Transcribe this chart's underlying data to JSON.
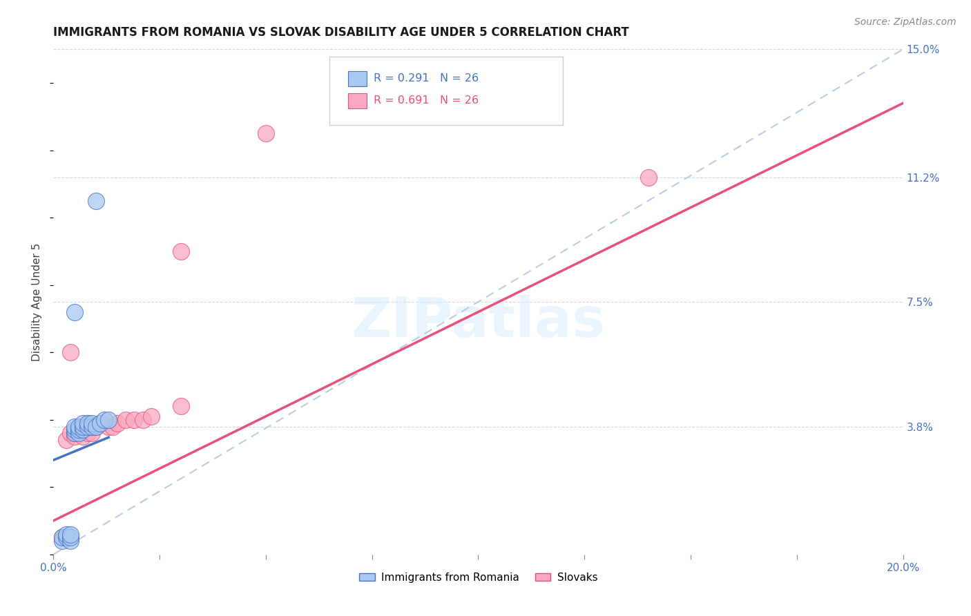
{
  "title": "IMMIGRANTS FROM ROMANIA VS SLOVAK DISABILITY AGE UNDER 5 CORRELATION CHART",
  "source": "Source: ZipAtlas.com",
  "ylabel": "Disability Age Under 5",
  "xlim": [
    0,
    0.2
  ],
  "ylim": [
    0,
    0.15
  ],
  "right_ytick_positions": [
    0.0,
    0.038,
    0.075,
    0.112,
    0.15
  ],
  "right_ytick_labels": [
    "",
    "3.8%",
    "7.5%",
    "11.2%",
    "15.0%"
  ],
  "legend_label1": "Immigrants from Romania",
  "legend_label2": "Slovaks",
  "color_romania": "#a8c8f0",
  "color_slovak": "#f8a8c0",
  "line_color_romania": "#4472c4",
  "line_color_slovak": "#e8507a",
  "diagonal_color": "#b8cce4",
  "watermark": "ZIPatlas",
  "romania_x": [
    0.002,
    0.002,
    0.003,
    0.003,
    0.004,
    0.004,
    0.004,
    0.005,
    0.005,
    0.005,
    0.006,
    0.006,
    0.006,
    0.007,
    0.007,
    0.007,
    0.008,
    0.008,
    0.009,
    0.009,
    0.01,
    0.011,
    0.012,
    0.013,
    0.005,
    0.01
  ],
  "romania_y": [
    0.004,
    0.005,
    0.005,
    0.006,
    0.004,
    0.005,
    0.006,
    0.036,
    0.037,
    0.038,
    0.036,
    0.037,
    0.038,
    0.037,
    0.038,
    0.039,
    0.038,
    0.039,
    0.038,
    0.039,
    0.038,
    0.039,
    0.04,
    0.04,
    0.072,
    0.105
  ],
  "slovak_x": [
    0.002,
    0.003,
    0.004,
    0.004,
    0.005,
    0.005,
    0.006,
    0.007,
    0.007,
    0.008,
    0.008,
    0.009,
    0.009,
    0.01,
    0.011,
    0.013,
    0.014,
    0.015,
    0.017,
    0.019,
    0.021,
    0.023,
    0.03,
    0.05,
    0.14,
    0.03
  ],
  "slovak_y": [
    0.005,
    0.034,
    0.036,
    0.06,
    0.035,
    0.036,
    0.037,
    0.035,
    0.038,
    0.036,
    0.039,
    0.036,
    0.038,
    0.038,
    0.039,
    0.038,
    0.038,
    0.039,
    0.04,
    0.04,
    0.04,
    0.041,
    0.044,
    0.125,
    0.112,
    0.09
  ],
  "regression_romania": {
    "slope": 0.52,
    "intercept": 0.028
  },
  "regression_slovak": {
    "slope": 0.62,
    "intercept": 0.01
  },
  "background_color": "#ffffff",
  "grid_color": "#c8d8e8",
  "title_fontsize": 12,
  "source_fontsize": 10,
  "axis_label_fontsize": 11,
  "tick_fontsize": 11,
  "tick_color": "#4472c4"
}
